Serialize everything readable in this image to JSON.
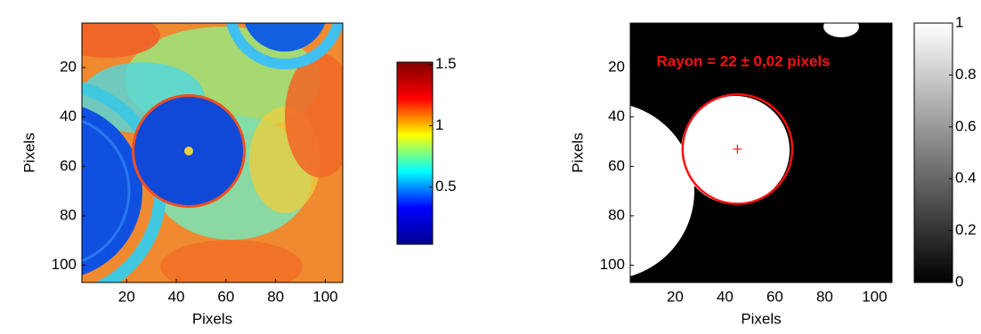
{
  "chart_data": [
    {
      "type": "heatmap",
      "xlabel": "Pixels",
      "ylabel": "Pixels",
      "xlim": [
        2,
        107
      ],
      "ylim": [
        2,
        107
      ],
      "xticks": [
        20,
        40,
        60,
        80,
        100
      ],
      "yticks": [
        20,
        40,
        60,
        80,
        100
      ],
      "colormap": "jet",
      "colorbar": {
        "lim": [
          0.03,
          1.52
        ],
        "ticks": [
          0.5,
          1,
          1.5
        ]
      }
    },
    {
      "type": "heatmap",
      "xlabel": "Pixels",
      "ylabel": "Pixels",
      "xlim": [
        2,
        107
      ],
      "ylim": [
        2,
        107
      ],
      "xticks": [
        20,
        40,
        60,
        80,
        100
      ],
      "yticks": [
        20,
        40,
        60,
        80,
        100
      ],
      "colormap": "gray",
      "colorbar": {
        "lim": [
          0,
          1
        ],
        "ticks": [
          0,
          0.2,
          0.4,
          0.6,
          0.8,
          1
        ]
      },
      "annotation": "Rayon = 22 ± 0,02 pixels",
      "annotation_color": "#ff1010",
      "circle": {
        "center": [
          45,
          53
        ],
        "radius": 22,
        "color": "#ff1010"
      }
    }
  ]
}
